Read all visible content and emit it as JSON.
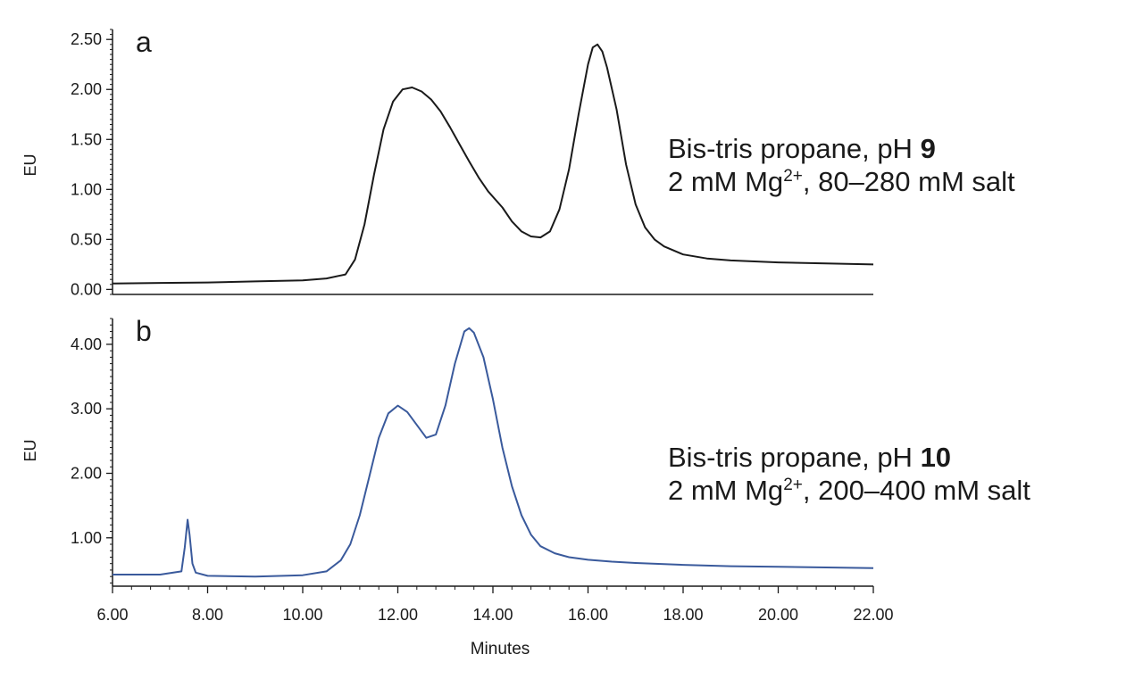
{
  "chart_data": [
    {
      "type": "line",
      "panel_label": "a",
      "ylabel": "EU",
      "xlabel": "",
      "xlim": [
        6,
        22
      ],
      "ylim": [
        -0.05,
        2.6
      ],
      "y_ticks": [
        0.0,
        0.5,
        1.0,
        1.5,
        2.0,
        2.5
      ],
      "y_tick_labels": [
        "0.00",
        "0.50",
        "1.00",
        "1.50",
        "2.00",
        "2.50"
      ],
      "line_color": "#1a1a1a",
      "grid": false,
      "annotation": {
        "line1_text": "Bis-tris propane, pH ",
        "line1_bold": "9",
        "line2_pre": "2 mM Mg",
        "line2_sup": "2+",
        "line2_post": ", 80–280 mM salt"
      },
      "x": [
        6.0,
        7.0,
        8.0,
        9.0,
        10.0,
        10.5,
        10.9,
        11.1,
        11.3,
        11.5,
        11.7,
        11.9,
        12.1,
        12.3,
        12.5,
        12.7,
        12.9,
        13.1,
        13.3,
        13.5,
        13.7,
        13.9,
        14.2,
        14.4,
        14.6,
        14.8,
        15.0,
        15.2,
        15.4,
        15.6,
        15.8,
        16.0,
        16.1,
        16.2,
        16.3,
        16.4,
        16.6,
        16.8,
        17.0,
        17.2,
        17.4,
        17.6,
        18.0,
        18.5,
        19.0,
        19.5,
        20.0,
        21.0,
        22.0
      ],
      "y": [
        0.06,
        0.065,
        0.07,
        0.08,
        0.09,
        0.11,
        0.15,
        0.3,
        0.65,
        1.15,
        1.6,
        1.88,
        2.0,
        2.02,
        1.98,
        1.9,
        1.78,
        1.62,
        1.45,
        1.28,
        1.12,
        0.98,
        0.82,
        0.68,
        0.58,
        0.53,
        0.52,
        0.58,
        0.8,
        1.2,
        1.75,
        2.25,
        2.42,
        2.45,
        2.38,
        2.22,
        1.8,
        1.25,
        0.85,
        0.62,
        0.5,
        0.43,
        0.35,
        0.31,
        0.29,
        0.28,
        0.27,
        0.26,
        0.25
      ]
    },
    {
      "type": "line",
      "panel_label": "b",
      "ylabel": "EU",
      "xlabel": "Minutes",
      "xlim": [
        6,
        22
      ],
      "ylim": [
        0.25,
        4.4
      ],
      "y_ticks": [
        1.0,
        2.0,
        3.0,
        4.0
      ],
      "y_tick_labels": [
        "1.00",
        "2.00",
        "3.00",
        "4.00"
      ],
      "x_ticks": [
        6,
        8,
        10,
        12,
        14,
        16,
        18,
        20,
        22
      ],
      "x_tick_labels": [
        "6.00",
        "8.00",
        "10.00",
        "12.00",
        "14.00",
        "16.00",
        "18.00",
        "20.00",
        "22.00"
      ],
      "line_color": "#3a5a9c",
      "grid": false,
      "annotation": {
        "line1_text": "Bis-tris propane, pH ",
        "line1_bold": "10",
        "line2_pre": "2 mM Mg",
        "line2_sup": "2+",
        "line2_post": ", 200–400 mM salt"
      },
      "x": [
        6.0,
        7.0,
        7.45,
        7.52,
        7.58,
        7.62,
        7.68,
        7.75,
        8.0,
        9.0,
        10.0,
        10.5,
        10.8,
        11.0,
        11.2,
        11.4,
        11.6,
        11.8,
        12.0,
        12.2,
        12.4,
        12.6,
        12.8,
        13.0,
        13.2,
        13.4,
        13.5,
        13.6,
        13.8,
        14.0,
        14.2,
        14.4,
        14.6,
        14.8,
        15.0,
        15.3,
        15.6,
        16.0,
        16.5,
        17.0,
        18.0,
        19.0,
        20.0,
        21.0,
        22.0
      ],
      "y": [
        0.43,
        0.43,
        0.48,
        0.85,
        1.28,
        1.05,
        0.6,
        0.46,
        0.41,
        0.4,
        0.42,
        0.48,
        0.65,
        0.9,
        1.35,
        1.95,
        2.55,
        2.93,
        3.05,
        2.95,
        2.75,
        2.55,
        2.6,
        3.05,
        3.7,
        4.2,
        4.25,
        4.18,
        3.8,
        3.15,
        2.4,
        1.8,
        1.35,
        1.05,
        0.87,
        0.76,
        0.7,
        0.66,
        0.63,
        0.61,
        0.58,
        0.56,
        0.55,
        0.54,
        0.53
      ]
    }
  ]
}
